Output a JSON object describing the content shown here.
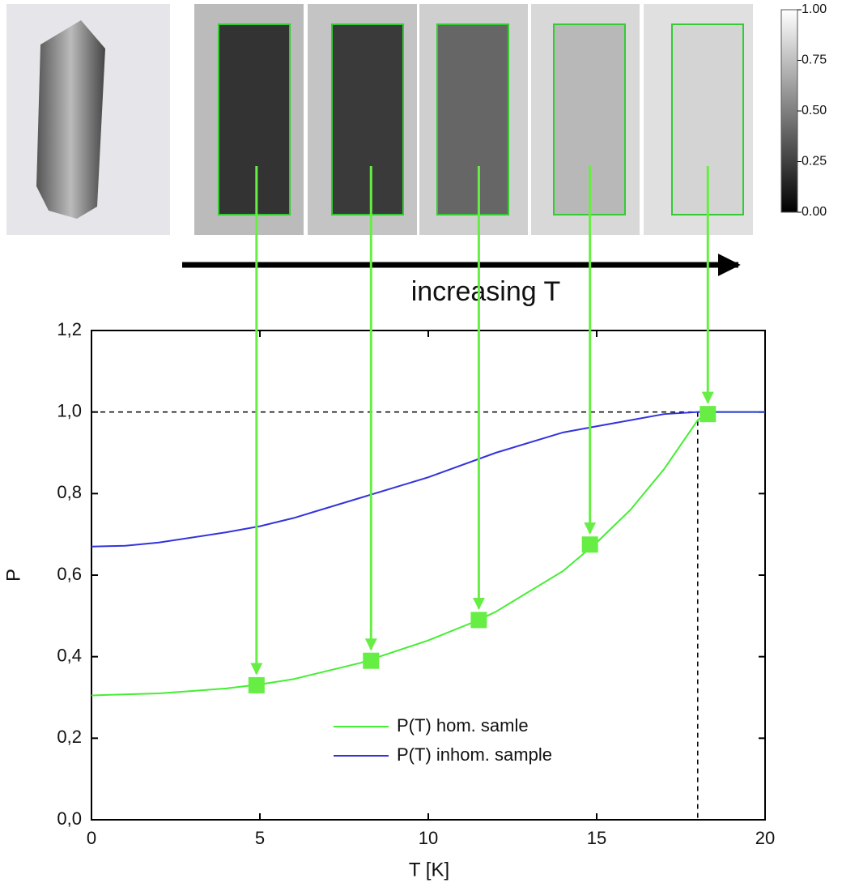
{
  "chart_data": {
    "type": "line",
    "annotation": "increasing T",
    "xlabel": "T [K]",
    "ylabel": "P",
    "xlim": [
      0,
      20
    ],
    "ylim": [
      0,
      1.2
    ],
    "xticks": [
      0,
      5,
      10,
      15,
      20
    ],
    "yticks": [
      {
        "value": 0,
        "label": "0,0"
      },
      {
        "value": 0.2,
        "label": "0,2"
      },
      {
        "value": 0.4,
        "label": "0,4"
      },
      {
        "value": 0.6,
        "label": "0,6"
      },
      {
        "value": 0.8,
        "label": "0,8"
      },
      {
        "value": 1.0,
        "label": "1,0"
      },
      {
        "value": 1.2,
        "label": "1,2"
      }
    ],
    "hline": 1.0,
    "vline": 18,
    "series": [
      {
        "name": "P(T) hom. samle",
        "color": "#44ee33",
        "x": [
          0,
          2,
          4,
          5,
          6,
          8,
          10,
          11.5,
          12,
          14,
          15,
          16,
          17,
          18,
          18.3,
          19,
          20
        ],
        "values": [
          0.305,
          0.31,
          0.322,
          0.332,
          0.345,
          0.385,
          0.44,
          0.49,
          0.51,
          0.61,
          0.68,
          0.76,
          0.86,
          0.98,
          1.0,
          1.0,
          1.0
        ]
      },
      {
        "name": "P(T) inhom. sample",
        "color": "#3333dd",
        "x": [
          0,
          1,
          2,
          4,
          5,
          6,
          8,
          10,
          12,
          14,
          15,
          16,
          17,
          18,
          20
        ],
        "values": [
          0.67,
          0.672,
          0.68,
          0.705,
          0.72,
          0.74,
          0.79,
          0.84,
          0.9,
          0.95,
          0.965,
          0.98,
          0.995,
          1.0,
          1.0
        ]
      }
    ],
    "points": {
      "color": "#66ee44",
      "x": [
        4.9,
        8.3,
        11.5,
        14.8,
        18.3
      ],
      "values": [
        0.33,
        0.39,
        0.49,
        0.675,
        0.995
      ]
    },
    "colorbar": {
      "ticks": [
        {
          "value": 0,
          "label": "0.00"
        },
        {
          "value": 0.25,
          "label": "0.25"
        },
        {
          "value": 0.5,
          "label": "0.50"
        },
        {
          "value": 0.75,
          "label": "0.75"
        },
        {
          "value": 1,
          "label": "1.00"
        }
      ]
    }
  }
}
